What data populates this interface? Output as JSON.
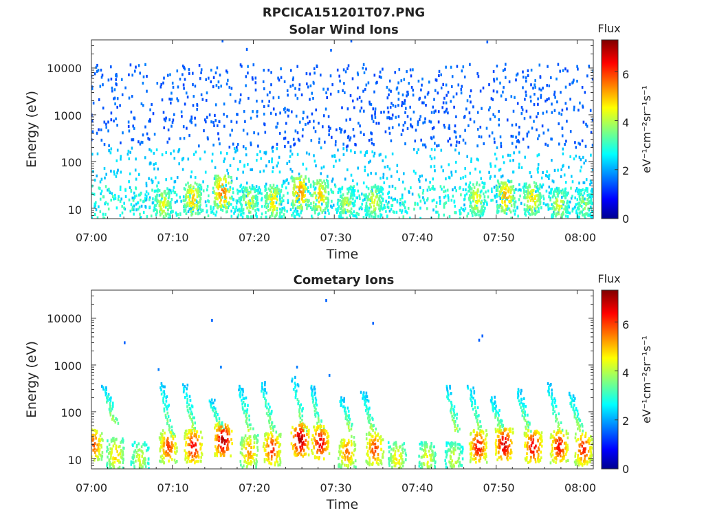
{
  "figure_title": "RPCICA151201T07.PNG",
  "chart_data": [
    {
      "type": "heatmap",
      "title": "Solar Wind Ions",
      "xlabel": "Time",
      "ylabel": "Energy (eV)",
      "x_ticks": [
        "07:00",
        "07:10",
        "07:20",
        "07:30",
        "07:40",
        "07:50",
        "08:00"
      ],
      "y_ticks": [
        "10",
        "100",
        "1000",
        "10000"
      ],
      "y_scale": "log",
      "x_range_minutes": [
        0,
        62
      ],
      "y_range_ev": [
        6,
        40000
      ],
      "colorbar": {
        "title": "Flux",
        "label": "eV⁻¹cm⁻²sr⁻¹s⁻¹",
        "ticks": [
          "0",
          "2",
          "4",
          "6"
        ],
        "range": [
          0,
          7.3
        ],
        "colormap": "jet"
      },
      "background_noise": {
        "energy_range_ev": [
          8,
          12000
        ],
        "level": 1.6
      },
      "low_energy_band": {
        "energy_range_ev": [
          6,
          30
        ],
        "level": 3.0
      },
      "bursts": [
        {
          "t": 8.9,
          "e": 12,
          "v": 4.5
        },
        {
          "t": 12.5,
          "e": 16,
          "v": 5.0
        },
        {
          "t": 16.2,
          "e": 22,
          "v": 5.6
        },
        {
          "t": 19.5,
          "e": 14,
          "v": 4.4
        },
        {
          "t": 22.5,
          "e": 14,
          "v": 4.8
        },
        {
          "t": 25.8,
          "e": 22,
          "v": 5.4
        },
        {
          "t": 28.2,
          "e": 18,
          "v": 5.0
        },
        {
          "t": 31.5,
          "e": 12,
          "v": 4.2
        },
        {
          "t": 34.9,
          "e": 14,
          "v": 4.4
        },
        {
          "t": 47.6,
          "e": 16,
          "v": 4.6
        },
        {
          "t": 51.2,
          "e": 18,
          "v": 5.2
        },
        {
          "t": 54.5,
          "e": 16,
          "v": 4.8
        },
        {
          "t": 57.8,
          "e": 12,
          "v": 4.4
        },
        {
          "t": 60.9,
          "e": 12,
          "v": 4.0
        }
      ],
      "outliers": [
        {
          "t": 16.2,
          "e": 38000,
          "v": 1.6
        },
        {
          "t": 19.2,
          "e": 25000,
          "v": 1.6
        },
        {
          "t": 29.6,
          "e": 24000,
          "v": 1.6
        },
        {
          "t": 32.1,
          "e": 38000,
          "v": 1.6
        },
        {
          "t": 48.9,
          "e": 36000,
          "v": 1.6
        }
      ]
    },
    {
      "type": "heatmap",
      "title": "Cometary Ions",
      "xlabel": "Time",
      "ylabel": "Energy (eV)",
      "x_ticks": [
        "07:00",
        "07:10",
        "07:20",
        "07:30",
        "07:40",
        "07:50",
        "08:00"
      ],
      "y_ticks": [
        "10",
        "100",
        "1000",
        "10000"
      ],
      "y_scale": "log",
      "x_range_minutes": [
        0,
        62
      ],
      "y_range_ev": [
        6,
        40000
      ],
      "colorbar": {
        "title": "Flux",
        "label": "eV⁻¹cm⁻²sr⁻¹s⁻¹",
        "ticks": [
          "0",
          "2",
          "4",
          "6"
        ],
        "range": [
          0,
          7.3
        ],
        "colormap": "jet"
      },
      "bursts": [
        {
          "t": 0.3,
          "e": 20,
          "v": 5.8
        },
        {
          "t": 3.0,
          "e": 12,
          "v": 5.0
        },
        {
          "t": 6.0,
          "e": 10,
          "v": 4.4
        },
        {
          "t": 9.5,
          "e": 18,
          "v": 6.0
        },
        {
          "t": 12.6,
          "e": 18,
          "v": 6.5
        },
        {
          "t": 16.3,
          "e": 25,
          "v": 7.0
        },
        {
          "t": 19.5,
          "e": 14,
          "v": 5.4
        },
        {
          "t": 22.3,
          "e": 16,
          "v": 6.2
        },
        {
          "t": 25.8,
          "e": 25,
          "v": 7.0
        },
        {
          "t": 28.3,
          "e": 22,
          "v": 6.6
        },
        {
          "t": 31.6,
          "e": 14,
          "v": 5.6
        },
        {
          "t": 35.0,
          "e": 16,
          "v": 6.0
        },
        {
          "t": 37.8,
          "e": 10,
          "v": 4.8
        },
        {
          "t": 41.5,
          "e": 10,
          "v": 4.6
        },
        {
          "t": 44.8,
          "e": 10,
          "v": 4.4
        },
        {
          "t": 47.8,
          "e": 18,
          "v": 6.4
        },
        {
          "t": 51.0,
          "e": 20,
          "v": 6.8
        },
        {
          "t": 54.6,
          "e": 18,
          "v": 6.6
        },
        {
          "t": 57.8,
          "e": 18,
          "v": 6.4
        },
        {
          "t": 60.8,
          "e": 16,
          "v": 6.2
        }
      ],
      "dispersion_streaks": [
        {
          "t": 1.5,
          "e_top": 350,
          "e_bot": 60
        },
        {
          "t": 8.5,
          "e_top": 400,
          "e_bot": 30
        },
        {
          "t": 11.3,
          "e_top": 380,
          "e_bot": 40
        },
        {
          "t": 14.7,
          "e_top": 180,
          "e_bot": 40
        },
        {
          "t": 18.2,
          "e_top": 350,
          "e_bot": 40
        },
        {
          "t": 21.0,
          "e_top": 400,
          "e_bot": 40
        },
        {
          "t": 24.9,
          "e_top": 500,
          "e_bot": 40
        },
        {
          "t": 27.0,
          "e_top": 350,
          "e_bot": 40
        },
        {
          "t": 30.7,
          "e_top": 200,
          "e_bot": 40
        },
        {
          "t": 33.4,
          "e_top": 260,
          "e_bot": 40
        },
        {
          "t": 43.8,
          "e_top": 350,
          "e_bot": 40
        },
        {
          "t": 46.6,
          "e_top": 350,
          "e_bot": 40
        },
        {
          "t": 49.3,
          "e_top": 200,
          "e_bot": 40
        },
        {
          "t": 52.6,
          "e_top": 300,
          "e_bot": 40
        },
        {
          "t": 56.4,
          "e_top": 400,
          "e_bot": 40
        },
        {
          "t": 59.0,
          "e_top": 250,
          "e_bot": 40
        }
      ],
      "outliers": [
        {
          "t": 4.1,
          "e": 3000,
          "v": 1.6
        },
        {
          "t": 14.9,
          "e": 9000,
          "v": 1.6
        },
        {
          "t": 29.0,
          "e": 24000,
          "v": 1.6
        },
        {
          "t": 34.8,
          "e": 7800,
          "v": 1.6
        },
        {
          "t": 47.9,
          "e": 3400,
          "v": 1.6
        },
        {
          "t": 48.3,
          "e": 4200,
          "v": 1.6
        },
        {
          "t": 8.3,
          "e": 800,
          "v": 1.8
        },
        {
          "t": 16.0,
          "e": 900,
          "v": 1.8
        },
        {
          "t": 25.4,
          "e": 900,
          "v": 1.8
        },
        {
          "t": 29.4,
          "e": 600,
          "v": 1.8
        }
      ]
    }
  ]
}
